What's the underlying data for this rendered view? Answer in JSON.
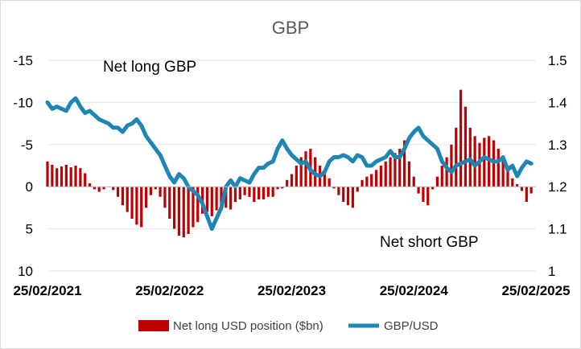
{
  "chart_data": {
    "type": "bar+line",
    "title": "GBP",
    "x_tick_labels": [
      "25/02/2021",
      "25/02/2022",
      "25/02/2023",
      "25/02/2024",
      "25/02/2025"
    ],
    "left_axis": {
      "ticks": [
        -15,
        -10,
        -5,
        0,
        5,
        10
      ],
      "tick_labels": [
        "-15",
        "-10",
        "-5",
        "0",
        "5",
        "10"
      ],
      "range": [
        -15,
        10
      ],
      "reversed": true
    },
    "right_axis": {
      "ticks": [
        1.5,
        1.4,
        1.3,
        1.2,
        1.1,
        1.0
      ],
      "tick_labels": [
        "1.5",
        "1.4",
        "1.3",
        "1.2",
        "1.1",
        "1"
      ],
      "range": [
        1.0,
        1.5
      ]
    },
    "x_range": [
      0,
      208
    ],
    "annotations": {
      "net_long": "Net long GBP",
      "net_short": "Net short GBP"
    },
    "legend": {
      "bar_label": "Net long USD position ($bn)",
      "line_label": "GBP/USD",
      "placement": "bottom"
    },
    "colors": {
      "bar": "#c00000",
      "line": "#1f86b4",
      "title": "#595959"
    },
    "series": [
      {
        "name": "Net long USD position ($bn)",
        "kind": "bar",
        "x": [
          0,
          2,
          4,
          6,
          8,
          10,
          12,
          14,
          16,
          18,
          20,
          22,
          24,
          26,
          28,
          30,
          32,
          34,
          36,
          38,
          40,
          42,
          44,
          46,
          48,
          50,
          52,
          54,
          56,
          58,
          60,
          62,
          64,
          66,
          68,
          70,
          72,
          74,
          76,
          78,
          80,
          82,
          84,
          86,
          88,
          90,
          92,
          94,
          96,
          98,
          100,
          102,
          104,
          106,
          108,
          110,
          112,
          114,
          116,
          118,
          120,
          122,
          124,
          126,
          128,
          130,
          132,
          134,
          136,
          138,
          140,
          142,
          144,
          146,
          148,
          150,
          152,
          154,
          156,
          158,
          160,
          162,
          164,
          166,
          168,
          170,
          172,
          174,
          176,
          178,
          180,
          182,
          184,
          186,
          188,
          190,
          192,
          194,
          196,
          198,
          200,
          202,
          204,
          206
        ],
        "values": [
          -3,
          -2.6,
          -2.2,
          -2.4,
          -2.6,
          -2.3,
          -2.5,
          -2.2,
          -1.6,
          -0.4,
          0.3,
          0.6,
          0.3,
          0,
          0.4,
          1.2,
          2.2,
          3,
          3.8,
          4.5,
          4.8,
          2.5,
          1,
          0.3,
          1.2,
          2.5,
          3.8,
          5,
          5.8,
          6,
          5.6,
          4.8,
          4.2,
          3.2,
          3,
          3.5,
          2.8,
          2.2,
          2.5,
          2.7,
          1.8,
          1.5,
          1,
          1.2,
          1.8,
          1.5,
          1.5,
          1.2,
          1.2,
          0.3,
          0.2,
          -0.8,
          -1.5,
          -2.5,
          -3.5,
          -4.2,
          -4.5,
          -3.5,
          -2.5,
          -1.5,
          -1,
          0.2,
          1,
          1.8,
          2.2,
          2.5,
          0.6,
          -0.8,
          -1.2,
          -1.5,
          -2,
          -2.5,
          -3,
          -3.5,
          -4,
          -4.5,
          -5.5,
          -3,
          -1.2,
          0.8,
          1.8,
          2.2,
          0.3,
          -1.2,
          -2.5,
          -3.5,
          -5,
          -7,
          -11.5,
          -9.5,
          -7,
          -6,
          -5.2,
          -5.8,
          -6,
          -5.5,
          -4.5,
          -3.5,
          -2.5,
          -1,
          -0.3,
          0.5,
          1.8,
          0.8
        ]
      },
      {
        "name": "GBP/USD",
        "kind": "line",
        "x": [
          0,
          2,
          4,
          6,
          8,
          10,
          12,
          14,
          16,
          18,
          20,
          22,
          24,
          26,
          28,
          30,
          32,
          34,
          36,
          38,
          40,
          42,
          44,
          46,
          48,
          50,
          52,
          54,
          56,
          58,
          60,
          62,
          64,
          66,
          68,
          70,
          72,
          74,
          76,
          78,
          80,
          82,
          84,
          86,
          88,
          90,
          92,
          94,
          96,
          98,
          100,
          102,
          104,
          106,
          108,
          110,
          112,
          114,
          116,
          118,
          120,
          122,
          124,
          126,
          128,
          130,
          132,
          134,
          136,
          138,
          140,
          142,
          144,
          146,
          148,
          150,
          152,
          154,
          156,
          158,
          160,
          162,
          164,
          166,
          168,
          170,
          172,
          174,
          176,
          178,
          180,
          182,
          184,
          186,
          188,
          190,
          192,
          194,
          196,
          198,
          200,
          202,
          204,
          206
        ],
        "values": [
          1.4,
          1.385,
          1.39,
          1.385,
          1.38,
          1.4,
          1.41,
          1.39,
          1.375,
          1.38,
          1.37,
          1.36,
          1.355,
          1.35,
          1.34,
          1.34,
          1.33,
          1.345,
          1.35,
          1.36,
          1.345,
          1.32,
          1.305,
          1.29,
          1.275,
          1.25,
          1.225,
          1.21,
          1.23,
          1.22,
          1.2,
          1.19,
          1.18,
          1.16,
          1.13,
          1.1,
          1.125,
          1.15,
          1.2,
          1.215,
          1.2,
          1.22,
          1.215,
          1.21,
          1.23,
          1.245,
          1.245,
          1.255,
          1.26,
          1.29,
          1.31,
          1.29,
          1.275,
          1.265,
          1.255,
          1.26,
          1.24,
          1.23,
          1.225,
          1.235,
          1.26,
          1.27,
          1.27,
          1.275,
          1.27,
          1.26,
          1.275,
          1.27,
          1.25,
          1.25,
          1.26,
          1.265,
          1.27,
          1.285,
          1.27,
          1.27,
          1.29,
          1.315,
          1.33,
          1.34,
          1.32,
          1.31,
          1.3,
          1.29,
          1.26,
          1.245,
          1.235,
          1.25,
          1.255,
          1.26,
          1.265,
          1.25,
          1.26,
          1.27,
          1.265,
          1.26,
          1.26,
          1.27,
          1.24,
          1.25,
          1.225,
          1.245,
          1.26,
          1.255
        ]
      }
    ]
  }
}
